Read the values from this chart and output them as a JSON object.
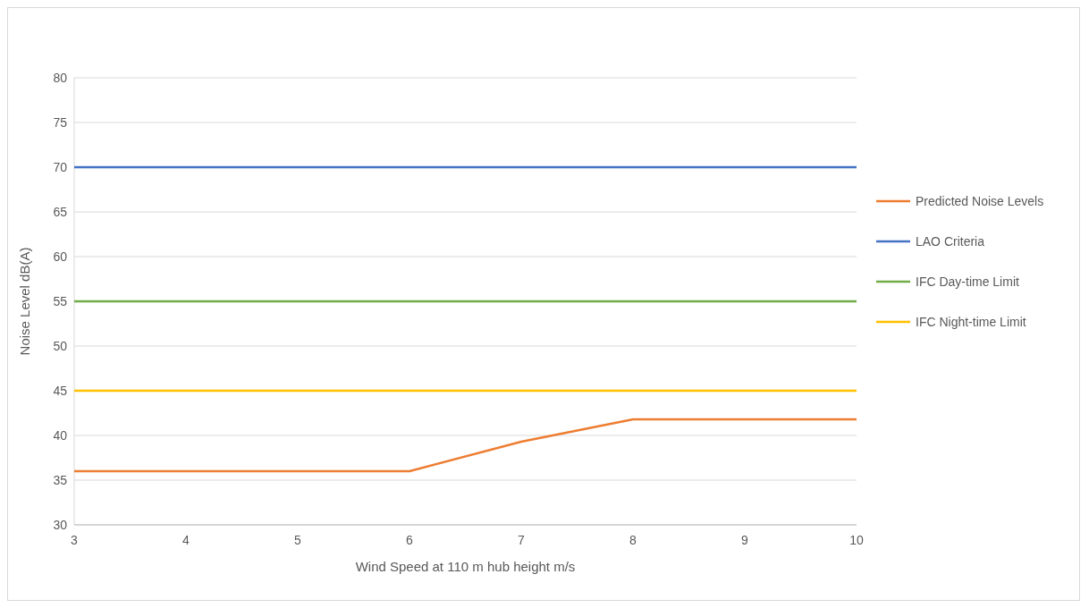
{
  "chart_data": {
    "type": "line",
    "xlabel": "Wind Speed at 110 m hub height m/s",
    "ylabel": "Noise Level dB(A)",
    "x": [
      3,
      4,
      5,
      6,
      7,
      8,
      9,
      10
    ],
    "series": [
      {
        "name": "Predicted Noise Levels",
        "color": "#ed7d31",
        "values": [
          36,
          36,
          36,
          36,
          39.3,
          41.8,
          41.8,
          41.8
        ]
      },
      {
        "name": "LAO Criteria",
        "color": "#4472c4",
        "values": [
          70,
          70,
          70,
          70,
          70,
          70,
          70,
          70
        ]
      },
      {
        "name": "IFC Day-time Limit",
        "color": "#70ad47",
        "values": [
          55,
          55,
          55,
          55,
          55,
          55,
          55,
          55
        ]
      },
      {
        "name": "IFC Night-time Limit",
        "color": "#ffc000",
        "values": [
          45,
          45,
          45,
          45,
          45,
          45,
          45,
          45
        ]
      }
    ],
    "xlim": [
      3,
      10
    ],
    "xticks": [
      3,
      4,
      5,
      6,
      7,
      8,
      9,
      10
    ],
    "ylim": [
      30,
      80
    ],
    "yticks": [
      30,
      35,
      40,
      45,
      50,
      55,
      60,
      65,
      70,
      75,
      80
    ],
    "grid": "y",
    "legend": "right",
    "marker": "none",
    "line_style": "solid"
  }
}
